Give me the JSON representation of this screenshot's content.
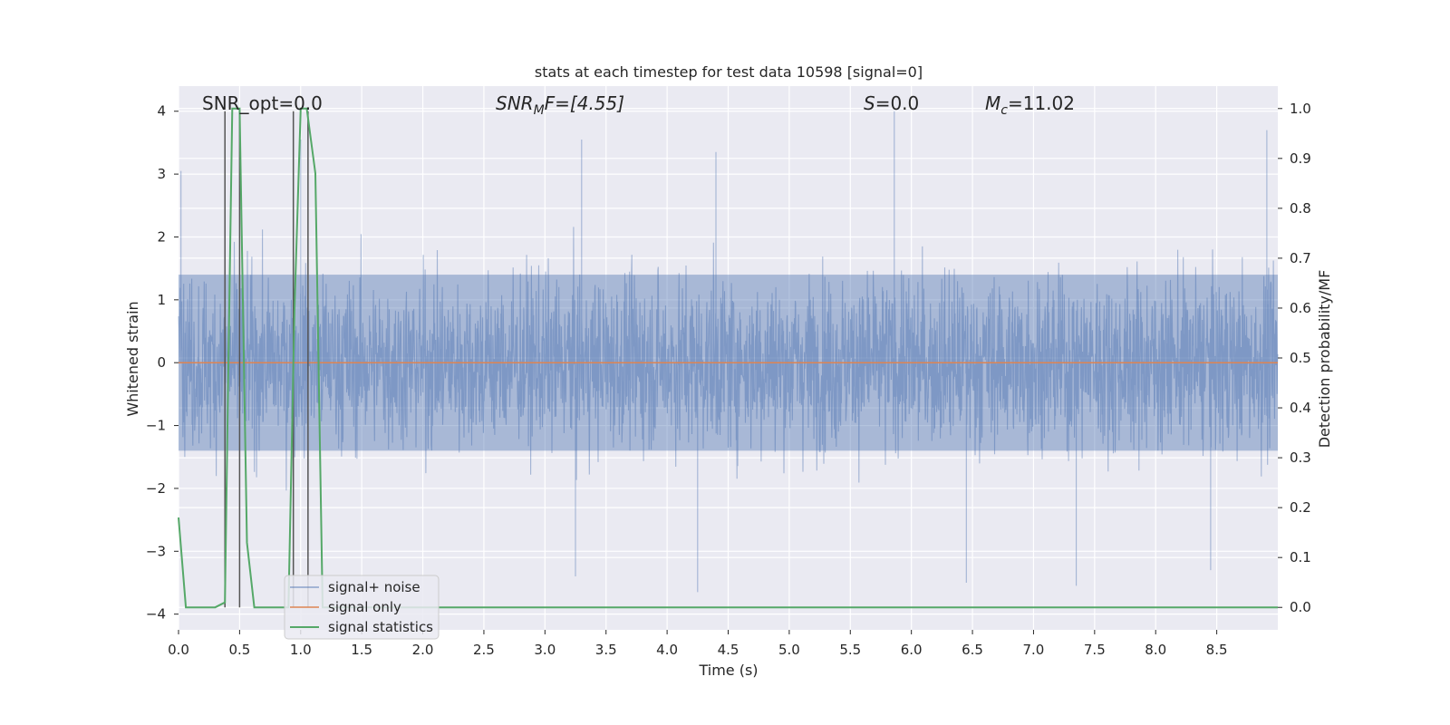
{
  "chart_data": {
    "type": "line",
    "title": "stats at each timestep for test data 10598 [signal=0]",
    "xlabel": "Time (s)",
    "ylabel_left": "Whitened strain",
    "ylabel_right": "Detection probability/MF",
    "xlim": [
      0.0,
      9.0
    ],
    "ylim_left": [
      -4.25,
      4.4
    ],
    "ylim_right": [
      -0.045,
      1.045
    ],
    "x_ticks": [
      0.0,
      0.5,
      1.0,
      1.5,
      2.0,
      2.5,
      3.0,
      3.5,
      4.0,
      4.5,
      5.0,
      5.5,
      6.0,
      6.5,
      7.0,
      7.5,
      8.0,
      8.5
    ],
    "x_tick_labels": [
      "0.0",
      "0.5",
      "1.0",
      "1.5",
      "2.0",
      "2.5",
      "3.0",
      "3.5",
      "4.0",
      "4.5",
      "5.0",
      "5.5",
      "6.0",
      "6.5",
      "7.0",
      "7.5",
      "8.0",
      "8.5"
    ],
    "y_left_ticks": [
      4,
      3,
      2,
      1,
      0,
      -1,
      -2,
      -3,
      -4
    ],
    "y_left_tick_labels": [
      "4",
      "3",
      "2",
      "1",
      "0",
      "−1",
      "−2",
      "−3",
      "−4"
    ],
    "y_right_ticks": [
      1.0,
      0.9,
      0.8,
      0.7,
      0.6,
      0.5,
      0.4,
      0.3,
      0.2,
      0.1,
      0.0
    ],
    "y_right_tick_labels": [
      "1.0",
      "0.9",
      "0.8",
      "0.7",
      "0.6",
      "0.5",
      "0.4",
      "0.3",
      "0.2",
      "0.1",
      "0.0"
    ],
    "grid": true,
    "legend_position": "lower-left",
    "colors": {
      "signal_noise": "#4c72b0",
      "signal_only": "#dd8452",
      "signal_statistics": "#55a868",
      "vlines": "#555555",
      "background": "#eaeaf2",
      "grid": "#ffffff"
    },
    "series": [
      {
        "name": "signal+ noise",
        "axis": "left",
        "kind": "noise",
        "amplitude_core": 1.4,
        "peaks": [
          [
            0.02,
            3.05
          ],
          [
            3.3,
            3.55
          ],
          [
            4.4,
            3.35
          ],
          [
            5.86,
            4.0
          ],
          [
            8.91,
            3.7
          ],
          [
            1.0,
            3.55
          ],
          [
            4.25,
            -3.65
          ],
          [
            3.25,
            -3.4
          ],
          [
            6.45,
            -3.5
          ],
          [
            7.35,
            -3.55
          ],
          [
            8.45,
            -3.3
          ]
        ]
      },
      {
        "name": "signal only",
        "axis": "left",
        "x": [
          0.0,
          9.0
        ],
        "y": [
          0.0,
          0.0
        ]
      },
      {
        "name": "signal statistics",
        "axis": "right",
        "x": [
          0.0,
          0.06,
          0.12,
          0.3,
          0.38,
          0.4,
          0.44,
          0.5,
          0.56,
          0.62,
          0.7,
          0.9,
          0.95,
          1.0,
          1.05,
          1.12,
          1.18,
          1.25,
          1.35,
          9.0
        ],
        "y": [
          0.18,
          0.0,
          0.0,
          0.0,
          0.01,
          0.35,
          1.0,
          1.0,
          0.13,
          0.0,
          0.0,
          0.0,
          0.6,
          1.0,
          1.0,
          0.87,
          0.0,
          0.0,
          0.0,
          0.0
        ]
      }
    ],
    "vlines": [
      0.38,
      0.5,
      0.94,
      1.06
    ],
    "annotations": [
      {
        "id": "snr-opt",
        "text": "SNR_opt=0.0",
        "x": 0.2
      },
      {
        "id": "snr-mf",
        "text": "SNR_MF=[4.55]",
        "parts": [
          "SNR",
          "M",
          "F=[4.55]"
        ],
        "x": 2.6
      },
      {
        "id": "s",
        "text": "S=0.0",
        "parts": [
          "S",
          "=0.0"
        ],
        "x": 5.6
      },
      {
        "id": "mc",
        "text": "M_c=11.02",
        "parts": [
          "M",
          "c",
          "=11.02"
        ],
        "x": 6.6
      }
    ]
  }
}
